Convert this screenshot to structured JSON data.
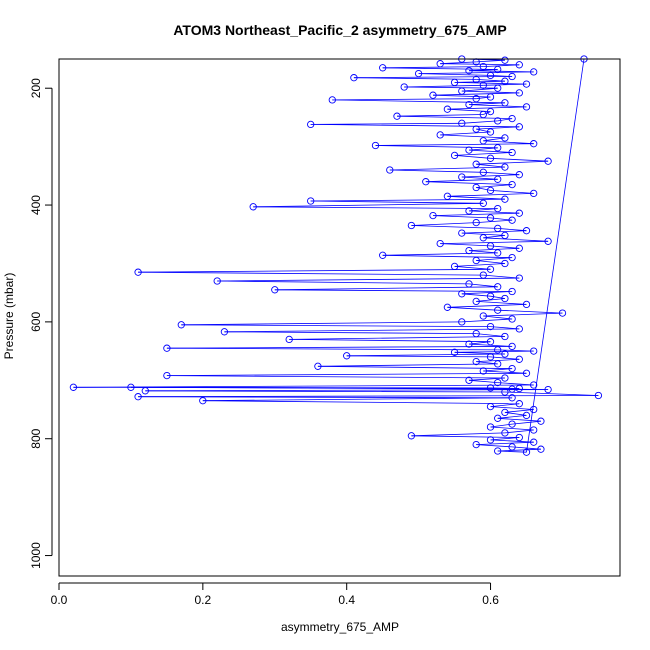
{
  "chart_data": {
    "type": "scatter",
    "title": "ATOM3 Northeast_Pacific_2 asymmetry_675_AMP",
    "xlabel": "asymmetry_675_AMP",
    "ylabel": "Pressure (mbar)",
    "xlim": [
      0.0,
      0.78
    ],
    "ylim": [
      1035,
      150
    ],
    "y_reversed": true,
    "grid": false,
    "legend": "none",
    "x_ticks": [
      0.0,
      0.2,
      0.4,
      0.6
    ],
    "x_tick_labels": [
      "0.0",
      "0.2",
      "0.4",
      "0.6"
    ],
    "y_ticks": [
      200,
      400,
      600,
      800,
      1000
    ],
    "y_tick_labels": [
      "200",
      "400",
      "600",
      "800",
      "1000"
    ],
    "marker": "open-circle",
    "connected": true,
    "color": "#0000ff",
    "series": [
      {
        "points": [
          [
            0.56,
            150
          ],
          [
            0.62,
            152
          ],
          [
            0.58,
            155
          ],
          [
            0.53,
            158
          ],
          [
            0.64,
            160
          ],
          [
            0.59,
            163
          ],
          [
            0.45,
            165
          ],
          [
            0.61,
            168
          ],
          [
            0.57,
            170
          ],
          [
            0.66,
            172
          ],
          [
            0.5,
            175
          ],
          [
            0.6,
            178
          ],
          [
            0.63,
            180
          ],
          [
            0.41,
            182
          ],
          [
            0.58,
            185
          ],
          [
            0.62,
            188
          ],
          [
            0.55,
            190
          ],
          [
            0.65,
            193
          ],
          [
            0.59,
            195
          ],
          [
            0.48,
            198
          ],
          [
            0.61,
            200
          ],
          [
            0.56,
            205
          ],
          [
            0.64,
            208
          ],
          [
            0.52,
            212
          ],
          [
            0.6,
            215
          ],
          [
            0.58,
            218
          ],
          [
            0.38,
            220
          ],
          [
            0.62,
            225
          ],
          [
            0.57,
            228
          ],
          [
            0.65,
            232
          ],
          [
            0.54,
            236
          ],
          [
            0.6,
            240
          ],
          [
            0.59,
            245
          ],
          [
            0.47,
            248
          ],
          [
            0.63,
            252
          ],
          [
            0.61,
            256
          ],
          [
            0.56,
            260
          ],
          [
            0.35,
            262
          ],
          [
            0.64,
            266
          ],
          [
            0.58,
            270
          ],
          [
            0.6,
            275
          ],
          [
            0.53,
            280
          ],
          [
            0.62,
            285
          ],
          [
            0.59,
            290
          ],
          [
            0.66,
            295
          ],
          [
            0.44,
            298
          ],
          [
            0.61,
            302
          ],
          [
            0.57,
            306
          ],
          [
            0.63,
            310
          ],
          [
            0.55,
            315
          ],
          [
            0.6,
            320
          ],
          [
            0.68,
            325
          ],
          [
            0.58,
            330
          ],
          [
            0.62,
            335
          ],
          [
            0.46,
            340
          ],
          [
            0.59,
            344
          ],
          [
            0.64,
            348
          ],
          [
            0.56,
            352
          ],
          [
            0.61,
            356
          ],
          [
            0.51,
            360
          ],
          [
            0.63,
            365
          ],
          [
            0.58,
            370
          ],
          [
            0.6,
            375
          ],
          [
            0.66,
            380
          ],
          [
            0.54,
            385
          ],
          [
            0.62,
            390
          ],
          [
            0.35,
            393
          ],
          [
            0.59,
            397
          ],
          [
            0.27,
            403
          ],
          [
            0.61,
            406
          ],
          [
            0.57,
            410
          ],
          [
            0.64,
            414
          ],
          [
            0.52,
            418
          ],
          [
            0.6,
            422
          ],
          [
            0.63,
            426
          ],
          [
            0.58,
            430
          ],
          [
            0.49,
            435
          ],
          [
            0.61,
            440
          ],
          [
            0.65,
            444
          ],
          [
            0.56,
            448
          ],
          [
            0.62,
            452
          ],
          [
            0.59,
            456
          ],
          [
            0.68,
            462
          ],
          [
            0.53,
            466
          ],
          [
            0.6,
            470
          ],
          [
            0.64,
            474
          ],
          [
            0.57,
            478
          ],
          [
            0.61,
            482
          ],
          [
            0.45,
            486
          ],
          [
            0.63,
            490
          ],
          [
            0.58,
            495
          ],
          [
            0.62,
            500
          ],
          [
            0.55,
            505
          ],
          [
            0.6,
            510
          ],
          [
            0.11,
            515
          ],
          [
            0.59,
            520
          ],
          [
            0.64,
            525
          ],
          [
            0.22,
            530
          ],
          [
            0.57,
            535
          ],
          [
            0.61,
            540
          ],
          [
            0.3,
            545
          ],
          [
            0.63,
            548
          ],
          [
            0.56,
            552
          ],
          [
            0.6,
            556
          ],
          [
            0.62,
            560
          ],
          [
            0.58,
            565
          ],
          [
            0.65,
            570
          ],
          [
            0.54,
            575
          ],
          [
            0.61,
            580
          ],
          [
            0.7,
            585
          ],
          [
            0.59,
            590
          ],
          [
            0.63,
            595
          ],
          [
            0.56,
            600
          ],
          [
            0.17,
            605
          ],
          [
            0.6,
            608
          ],
          [
            0.64,
            612
          ],
          [
            0.23,
            617
          ],
          [
            0.58,
            620
          ],
          [
            0.62,
            625
          ],
          [
            0.32,
            630
          ],
          [
            0.6,
            634
          ],
          [
            0.57,
            638
          ],
          [
            0.63,
            642
          ],
          [
            0.15,
            645
          ],
          [
            0.61,
            648
          ],
          [
            0.66,
            650
          ],
          [
            0.55,
            652
          ],
          [
            0.62,
            655
          ],
          [
            0.4,
            658
          ],
          [
            0.6,
            660
          ],
          [
            0.64,
            664
          ],
          [
            0.58,
            668
          ],
          [
            0.61,
            672
          ],
          [
            0.36,
            676
          ],
          [
            0.63,
            680
          ],
          [
            0.59,
            684
          ],
          [
            0.65,
            688
          ],
          [
            0.15,
            692
          ],
          [
            0.62,
            696
          ],
          [
            0.57,
            700
          ],
          [
            0.61,
            704
          ],
          [
            0.66,
            708
          ],
          [
            0.02,
            712
          ],
          [
            0.6,
            713
          ],
          [
            0.64,
            714
          ],
          [
            0.1,
            712
          ],
          [
            0.63,
            715
          ],
          [
            0.68,
            716
          ],
          [
            0.12,
            718
          ],
          [
            0.62,
            720
          ],
          [
            0.75,
            726
          ],
          [
            0.11,
            728
          ],
          [
            0.63,
            730
          ],
          [
            0.2,
            735
          ],
          [
            0.64,
            740
          ],
          [
            0.6,
            745
          ],
          [
            0.66,
            750
          ],
          [
            0.62,
            755
          ],
          [
            0.65,
            760
          ],
          [
            0.61,
            765
          ],
          [
            0.67,
            770
          ],
          [
            0.63,
            775
          ],
          [
            0.6,
            780
          ],
          [
            0.66,
            785
          ],
          [
            0.62,
            790
          ],
          [
            0.49,
            795
          ],
          [
            0.64,
            798
          ],
          [
            0.6,
            802
          ],
          [
            0.66,
            806
          ],
          [
            0.58,
            810
          ],
          [
            0.63,
            814
          ],
          [
            0.67,
            818
          ],
          [
            0.61,
            821
          ],
          [
            0.65,
            823
          ],
          [
            0.73,
            150
          ]
        ]
      }
    ]
  }
}
